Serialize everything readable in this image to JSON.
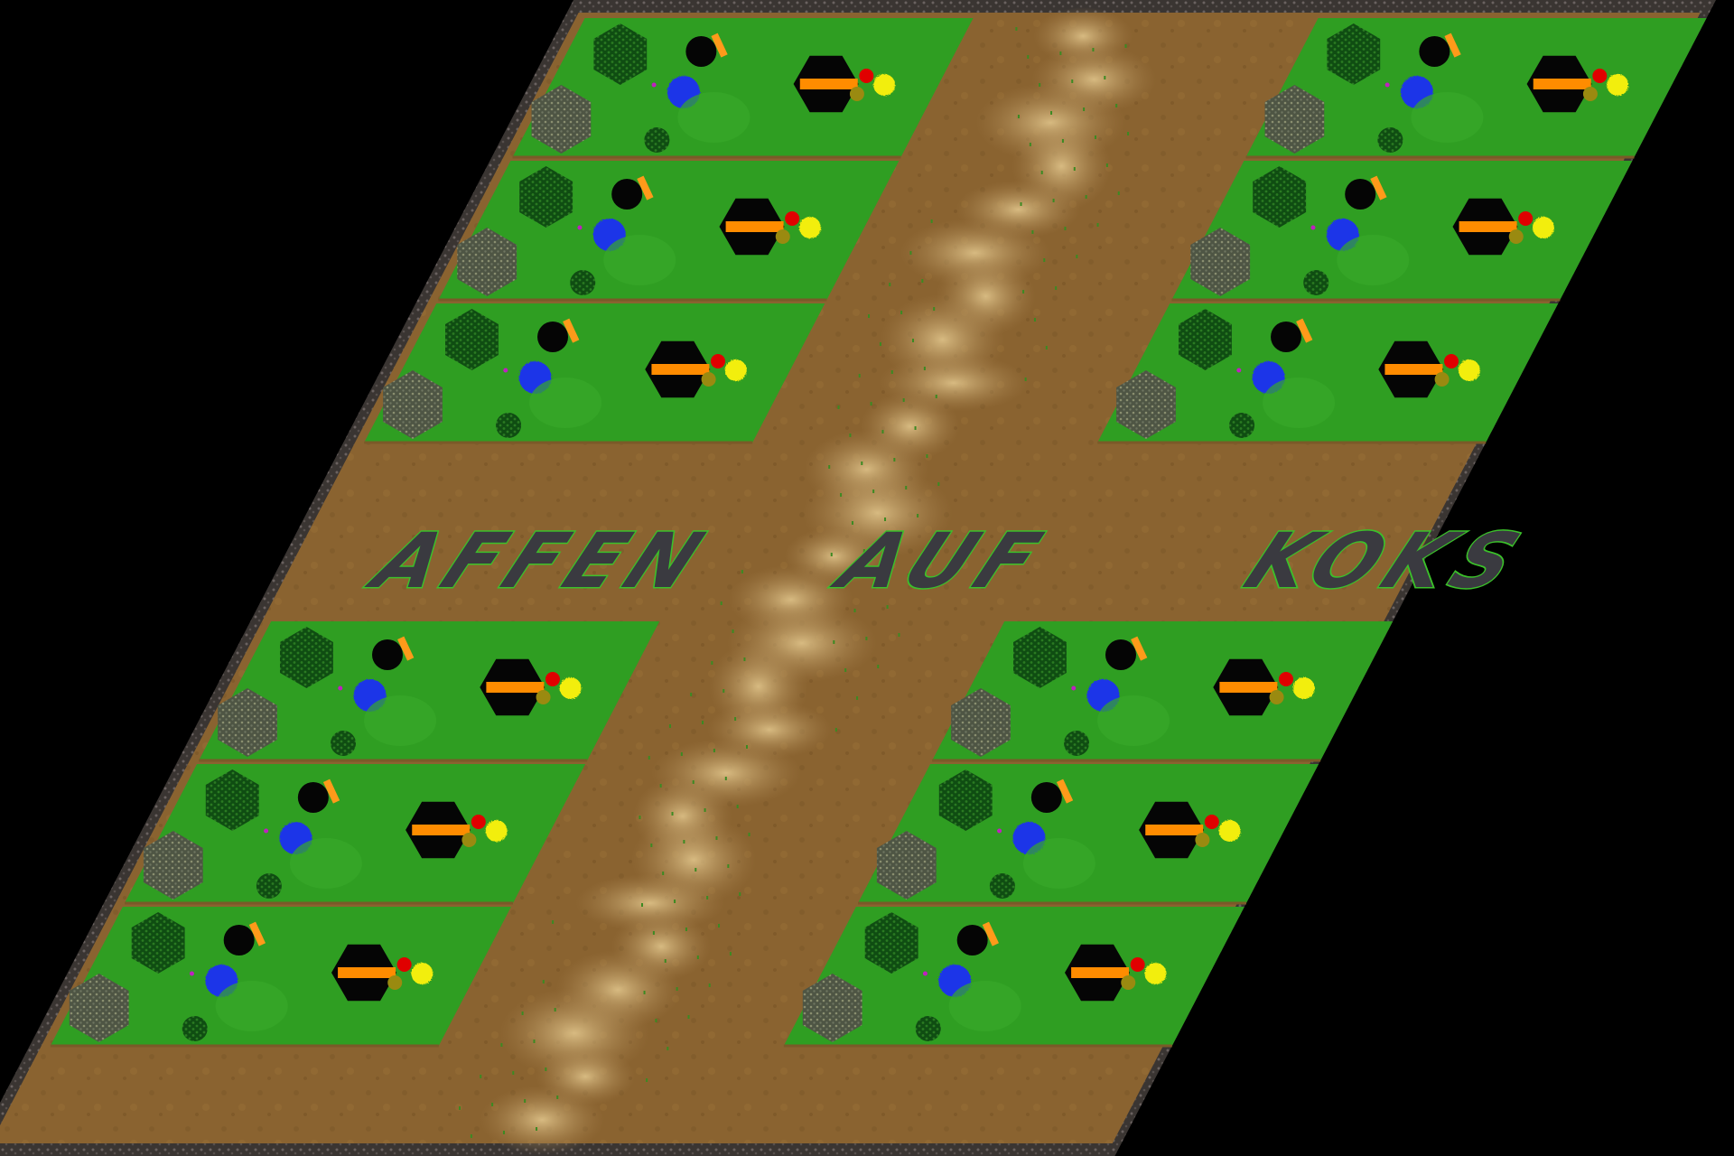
{
  "map": {
    "title_words": [
      "AFFEN",
      "AUF",
      "KOKS"
    ],
    "plot_rows_per_half": 3,
    "plot_columns": 2,
    "colors": {
      "grass": "#2f9e22",
      "grass_dark": "#1c6a15",
      "dirt": "#8a6330",
      "sand": "#c9a467",
      "border": "#4a4440",
      "mine_black": "#050505",
      "mine_stripe": "#ff8c00",
      "water_blue": "#1e35e8",
      "marker_red": "#e00000",
      "marker_olive": "#9a8a10",
      "marker_yellow": "#f2ee10",
      "forest": "#0d4a12",
      "rock": "#5e6650",
      "orange_tip": "#ff9a1a",
      "title_fill": "#3a3a40",
      "title_outline": "#3bc12a"
    },
    "icons": [
      "gold-mine-icon",
      "water-pool-icon",
      "tree-cluster-icon",
      "resource-markers-icon"
    ]
  }
}
